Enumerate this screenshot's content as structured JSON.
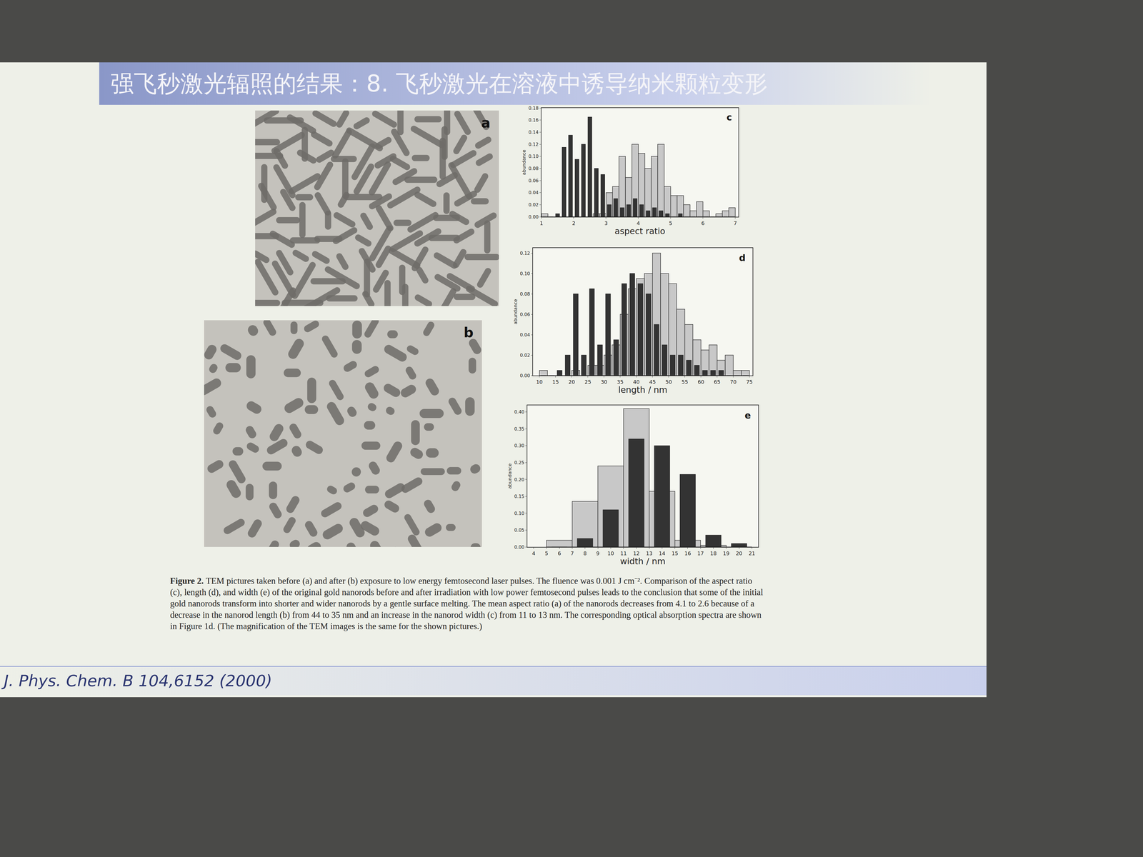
{
  "slide_title": "强飞秒激光辐照的结果：8. 飞秒激光在溶液中诱导纳米颗粒变形",
  "images": [
    {
      "label": "a"
    },
    {
      "label": "b"
    }
  ],
  "chart_data": [
    {
      "type": "histogram",
      "annotations": [
        "c"
      ],
      "x_label": "aspect ratio",
      "y_label": "abundance",
      "bins": [
        1.0,
        1.2,
        1.4,
        1.6,
        1.8,
        2.0,
        2.2,
        2.4,
        2.6,
        2.8,
        3.0,
        3.2,
        3.4,
        3.6,
        3.8,
        4.0,
        4.2,
        4.4,
        4.6,
        4.8,
        5.0,
        5.2,
        5.4,
        5.6,
        5.8,
        6.0,
        6.2,
        6.4,
        6.6,
        6.8,
        7.0
      ],
      "series": [
        {
          "color": "#c8c8c8",
          "values": [
            0.005,
            0,
            0,
            0,
            0,
            0,
            0,
            0,
            0.005,
            0.005,
            0.04,
            0.05,
            0.1,
            0.065,
            0.12,
            0.105,
            0.08,
            0.1,
            0.12,
            0.05,
            0.035,
            0.035,
            0.02,
            0.01,
            0.025,
            0.01,
            0,
            0.005,
            0.01,
            0.015
          ]
        },
        {
          "color": "#333333",
          "values": [
            0,
            0,
            0.005,
            0.115,
            0.135,
            0.095,
            0.12,
            0.165,
            0.08,
            0.07,
            0.02,
            0.03,
            0.015,
            0.02,
            0.03,
            0.02,
            0.01,
            0.015,
            0.01,
            0.005,
            0,
            0.005,
            0,
            0,
            0,
            0,
            0,
            0,
            0,
            0
          ]
        }
      ],
      "xlim": [
        1,
        7.1
      ],
      "xticks": [
        1,
        2,
        3,
        4,
        5,
        6,
        7
      ],
      "ylim": [
        0,
        0.18
      ],
      "yticks": [
        {
          "value": 0,
          "label": "0.00"
        },
        {
          "value": 0.02,
          "label": "0.02"
        },
        {
          "value": 0.04,
          "label": "0.04"
        },
        {
          "value": 0.06,
          "label": "0.06"
        },
        {
          "value": 0.08,
          "label": "0.08"
        },
        {
          "value": 0.1,
          "label": "0.10"
        },
        {
          "value": 0.12,
          "label": "0.12"
        },
        {
          "value": 0.14,
          "label": "0.14"
        },
        {
          "value": 0.16,
          "label": "0.16"
        },
        {
          "value": 0.18,
          "label": "0.18"
        }
      ],
      "grid": false
    },
    {
      "type": "histogram",
      "annotations": [
        "d"
      ],
      "x_label": "length / nm",
      "y_label": "abundance",
      "bins": [
        10,
        12.5,
        15,
        17.5,
        20,
        22.5,
        25,
        27.5,
        30,
        32.5,
        35,
        37.5,
        40,
        42.5,
        45,
        47.5,
        50,
        52.5,
        55,
        57.5,
        60,
        62.5,
        65,
        67.5,
        70,
        72.5,
        75
      ],
      "series": [
        {
          "color": "#c8c8c8",
          "values": [
            0.005,
            0,
            0,
            0,
            0.005,
            0,
            0.01,
            0.01,
            0.02,
            0.03,
            0.06,
            0.085,
            0.095,
            0.1,
            0.12,
            0.1,
            0.09,
            0.065,
            0.05,
            0.035,
            0.025,
            0.03,
            0.015,
            0.02,
            0.005,
            0.005
          ]
        },
        {
          "color": "#333333",
          "values": [
            0,
            0,
            0.005,
            0.02,
            0.08,
            0.02,
            0.085,
            0.03,
            0.08,
            0.035,
            0.09,
            0.1,
            0.09,
            0.08,
            0.05,
            0.03,
            0.02,
            0.02,
            0.015,
            0.01,
            0.005,
            0.005,
            0.005,
            0,
            0,
            0
          ]
        }
      ],
      "xlim": [
        8,
        76
      ],
      "xticks": [
        10,
        15,
        20,
        25,
        30,
        35,
        40,
        45,
        50,
        55,
        60,
        65,
        70,
        75
      ],
      "ylim": [
        0,
        0.125
      ],
      "yticks": [
        {
          "value": 0,
          "label": "0.00"
        },
        {
          "value": 0.02,
          "label": "0.02"
        },
        {
          "value": 0.04,
          "label": "0.04"
        },
        {
          "value": 0.06,
          "label": "0.06"
        },
        {
          "value": 0.08,
          "label": "0.08"
        },
        {
          "value": 0.1,
          "label": "0.10"
        },
        {
          "value": 0.12,
          "label": "0.12"
        }
      ],
      "grid": false
    },
    {
      "type": "histogram",
      "annotations": [
        "e"
      ],
      "x_label": "width / nm",
      "y_label": "abundance",
      "bins": [
        5,
        7,
        9,
        11,
        13,
        15,
        17,
        19,
        21
      ],
      "series": [
        {
          "color": "#c8c8c8",
          "values": [
            0.02,
            0.135,
            0.24,
            0.41,
            0.165,
            0.02,
            0.005,
            0
          ]
        },
        {
          "color": "#333333",
          "values": [
            0,
            0.025,
            0.11,
            0.32,
            0.3,
            0.215,
            0.035,
            0.01
          ]
        }
      ],
      "xlim": [
        3.5,
        21.5
      ],
      "xticks": [
        4,
        5,
        6,
        7,
        8,
        9,
        10,
        11,
        12,
        13,
        14,
        15,
        16,
        17,
        18,
        19,
        20,
        21
      ],
      "ylim": [
        0,
        0.42
      ],
      "yticks": [
        {
          "value": 0,
          "label": "0.00"
        },
        {
          "value": 0.05,
          "label": "0.05"
        },
        {
          "value": 0.1,
          "label": "0.10"
        },
        {
          "value": 0.15,
          "label": "0.15"
        },
        {
          "value": 0.2,
          "label": "0.20"
        },
        {
          "value": 0.25,
          "label": "0.25"
        },
        {
          "value": 0.3,
          "label": "0.30"
        },
        {
          "value": 0.35,
          "label": "0.35"
        },
        {
          "value": 0.4,
          "label": "0.40"
        }
      ],
      "grid": false
    }
  ],
  "caption": {
    "label": "Figure 2.",
    "text": "TEM pictures taken before (a) and after (b) exposure to low energy femtosecond laser pulses. The fluence was 0.001 J cm⁻². Comparison of the aspect ratio (c), length (d), and width (e) of the original gold nanorods before and after irradiation with low power femtosecond pulses leads to the conclusion that some of the initial gold nanorods transform into shorter and wider nanorods by a gentle surface melting. The mean aspect ratio (a) of the nanorods decreases from 4.1 to 2.6 because of a decrease in the nanorod length (b) from 44 to 35 nm and an increase in the nanorod width (c) from 11 to 13 nm. The corresponding optical absorption spectra are shown in Figure 1d. (The magnification of the TEM images is the same for the shown pictures.)"
  },
  "citation": "J. Phys. Chem. B 104,6152 (2000)"
}
